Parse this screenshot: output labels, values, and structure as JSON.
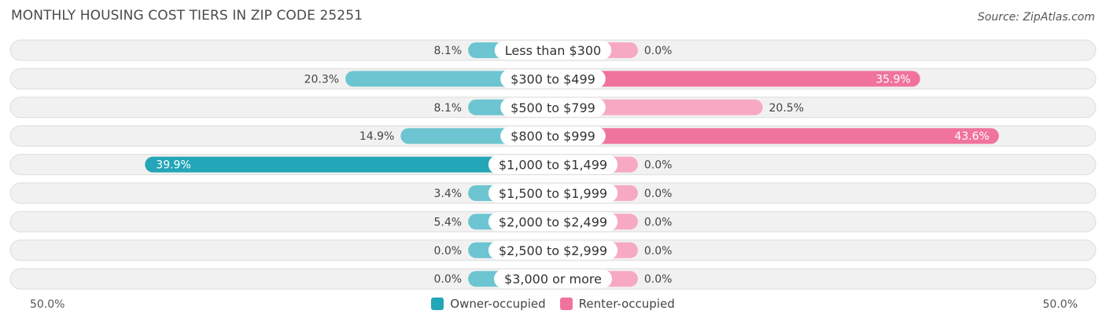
{
  "header": {
    "title": "MONTHLY HOUSING COST TIERS IN ZIP CODE 25251",
    "source": "Source: ZipAtlas.com"
  },
  "colors": {
    "owner": "#6cc5d0",
    "owner_strong": "#23a6b7",
    "renter": "#f7a9c3",
    "renter_strong": "#f0739d",
    "row_bg": "#f1f1f1",
    "row_border": "#dddddd"
  },
  "axis": {
    "left_label": "50.0%",
    "right_label": "50.0%"
  },
  "legend": {
    "owner": "Owner-occupied",
    "renter": "Renter-occupied"
  },
  "chart_data": {
    "type": "bar",
    "title": "MONTHLY HOUSING COST TIERS IN ZIP CODE 25251",
    "categories": [
      "Less than $300",
      "$300 to $499",
      "$500 to $799",
      "$800 to $999",
      "$1,000 to $1,499",
      "$1,500 to $1,999",
      "$2,000 to $2,499",
      "$2,500 to $2,999",
      "$3,000 or more"
    ],
    "series": [
      {
        "name": "Owner-occupied",
        "values": [
          8.1,
          20.3,
          8.1,
          14.9,
          39.9,
          3.4,
          5.4,
          0.0,
          0.0
        ],
        "labels": [
          "8.1%",
          "20.3%",
          "8.1%",
          "14.9%",
          "39.9%",
          "3.4%",
          "5.4%",
          "0.0%",
          "0.0%"
        ]
      },
      {
        "name": "Renter-occupied",
        "values": [
          0.0,
          35.9,
          20.5,
          43.6,
          0.0,
          0.0,
          0.0,
          0.0,
          0.0
        ],
        "labels": [
          "0.0%",
          "35.9%",
          "20.5%",
          "43.6%",
          "0.0%",
          "0.0%",
          "0.0%",
          "0.0%",
          "0.0%"
        ]
      }
    ],
    "xlim": [
      -50,
      50
    ],
    "orientation": "diverging-horizontal",
    "legend_position": "bottom-center",
    "grid": false
  }
}
